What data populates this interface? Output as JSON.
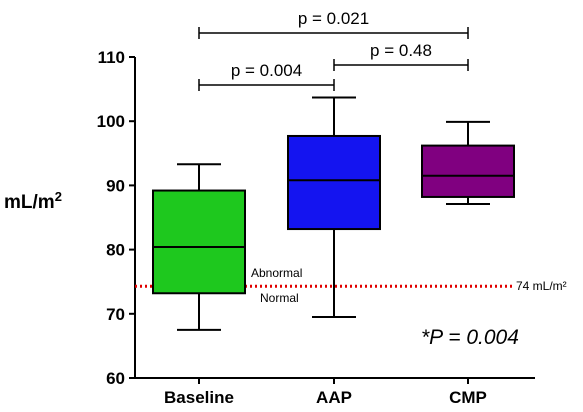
{
  "chart_data": {
    "type": "box",
    "ylabel": "mL/m2",
    "ylim": [
      60,
      110
    ],
    "yticks": [
      60,
      70,
      80,
      90,
      100,
      110
    ],
    "categories": [
      "Baseline",
      "AAP",
      "CMP"
    ],
    "boxes": [
      {
        "category": "Baseline",
        "min": 67.5,
        "q1": 73.2,
        "median": 80.4,
        "q3": 89.2,
        "max": 93.3,
        "color": "#1ec81e"
      },
      {
        "category": "AAP",
        "min": 69.5,
        "q1": 83.2,
        "median": 90.8,
        "q3": 97.7,
        "max": 103.7,
        "color": "#1414f0"
      },
      {
        "category": "CMP",
        "min": 87.1,
        "q1": 88.2,
        "median": 91.5,
        "q3": 96.2,
        "max": 99.9,
        "color": "#800080"
      }
    ],
    "reference_line": {
      "value": 74.3,
      "label": "74 mL/m²",
      "above_label": "Abnormal",
      "below_label": "Normal",
      "color": "#e00000",
      "style": "dotted"
    },
    "comparisons": [
      {
        "from": "Baseline",
        "to": "AAP",
        "label": "p = 0.004",
        "level": 1
      },
      {
        "from": "AAP",
        "to": "CMP",
        "label": "p = 0.48",
        "level": 2
      },
      {
        "from": "Baseline",
        "to": "CMP",
        "label": "p = 0.021",
        "level": 3
      }
    ],
    "annotation": "*P = 0.004"
  }
}
